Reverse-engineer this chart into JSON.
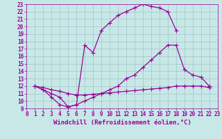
{
  "bg_color": "#c8e8e8",
  "line_color": "#990099",
  "xlabel": "Windchill (Refroidissement éolien,°C)",
  "xlim": [
    0,
    23
  ],
  "ylim": [
    9,
    23
  ],
  "xticks": [
    0,
    1,
    2,
    3,
    4,
    5,
    6,
    7,
    8,
    9,
    10,
    11,
    12,
    13,
    14,
    15,
    16,
    17,
    18,
    19,
    20,
    21,
    22,
    23
  ],
  "yticks": [
    9,
    10,
    11,
    12,
    13,
    14,
    15,
    16,
    17,
    18,
    19,
    20,
    21,
    22,
    23
  ],
  "line1_x": [
    1,
    2,
    3,
    4,
    5,
    6,
    7,
    8,
    9,
    10,
    11,
    12,
    13,
    14,
    15,
    16,
    17,
    18
  ],
  "line1_y": [
    12,
    11.5,
    11,
    10.5,
    9.2,
    9.5,
    17.5,
    16.5,
    19.5,
    20.5,
    21.5,
    22,
    22.5,
    23,
    22.7,
    22.5,
    22,
    19.5
  ],
  "line2_x": [
    1,
    2,
    3,
    4,
    5,
    6,
    7,
    8,
    9,
    10,
    11,
    12,
    13,
    14,
    15,
    16,
    17,
    18,
    19,
    20,
    21,
    22
  ],
  "line2_y": [
    12,
    11.8,
    11.5,
    11.3,
    11.0,
    10.8,
    10.8,
    10.9,
    11.0,
    11.1,
    11.2,
    11.3,
    11.4,
    11.5,
    11.6,
    11.7,
    11.8,
    12.0,
    12.0,
    12.0,
    12.0,
    11.8
  ],
  "line3_x": [
    1,
    2,
    3,
    4,
    5,
    6,
    7,
    8,
    9,
    10,
    11,
    12,
    13,
    14,
    15,
    16,
    17,
    18,
    19,
    20,
    21,
    22
  ],
  "line3_y": [
    12,
    11.5,
    10.5,
    9.5,
    9.2,
    9.5,
    10.0,
    10.5,
    11.0,
    11.5,
    12.0,
    13.0,
    13.5,
    14.5,
    15.5,
    16.5,
    17.5,
    17.5,
    14.2,
    13.5,
    13.2,
    12.0
  ],
  "marker": "P",
  "markersize": 3,
  "linewidth": 0.9,
  "xlabel_fontsize": 6.5,
  "tick_fontsize": 5.5
}
